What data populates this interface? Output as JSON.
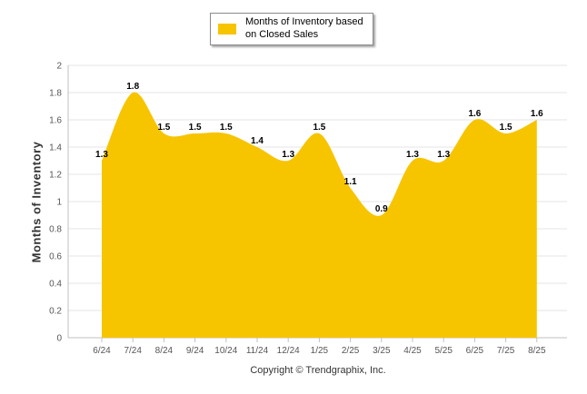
{
  "chart_data": {
    "type": "area",
    "categories": [
      "6/24",
      "7/24",
      "8/24",
      "9/24",
      "10/24",
      "11/24",
      "12/24",
      "1/25",
      "2/25",
      "3/25",
      "4/25",
      "5/25",
      "6/25",
      "7/25",
      "8/25"
    ],
    "series": [
      {
        "name": "Months of Inventory based on Closed Sales",
        "values": [
          1.3,
          1.8,
          1.5,
          1.5,
          1.5,
          1.4,
          1.3,
          1.5,
          1.1,
          0.9,
          1.3,
          1.3,
          1.6,
          1.5,
          1.6
        ],
        "value_labels": [
          "1.3",
          "1.8",
          "1.5",
          "1.5",
          "1.5",
          "1.4",
          "1.3",
          "1.5",
          "1.1",
          "0.9",
          "1.3",
          "1.3",
          "1.6",
          "1.5",
          "1.6"
        ]
      }
    ],
    "yticks": [
      "0",
      "0.2",
      "0.4",
      "0.6",
      "0.8",
      "1",
      "1.2",
      "1.4",
      "1.6",
      "1.8",
      "2"
    ],
    "ylim": [
      0,
      2
    ],
    "ylabel": "Months of Inventory",
    "grid": true,
    "legend_position": "top"
  },
  "colors": {
    "area_fill": "#f7c400",
    "grid": "#e6e6e6",
    "axis_text": "#555555",
    "label_text": "#000000"
  },
  "footer": {
    "copyright": "Copyright © Trendgraphix, Inc."
  }
}
